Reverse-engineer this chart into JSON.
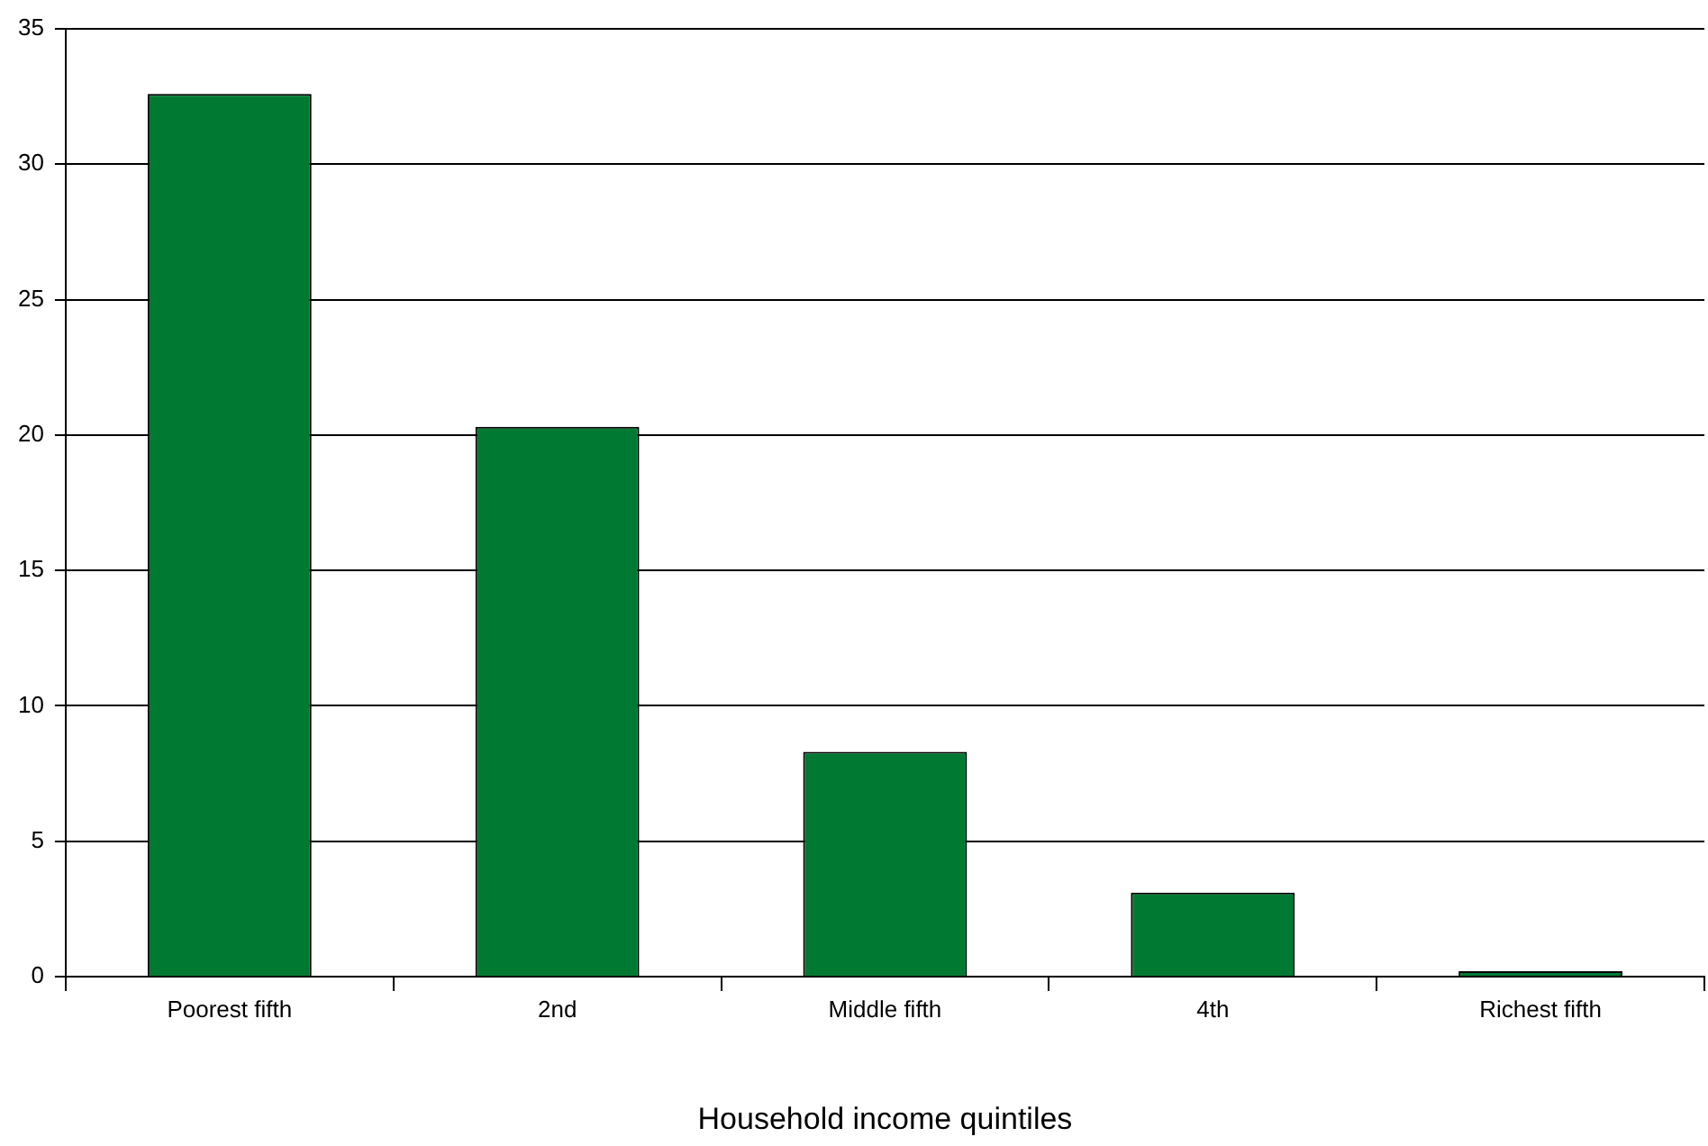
{
  "chart_data": {
    "type": "bar",
    "xlabel": "Household income quintiles",
    "categories": [
      "Poorest fifth",
      "2nd",
      "Middle fifth",
      "4th",
      "Richest fifth"
    ],
    "values": [
      32.6,
      20.3,
      8.3,
      3.1,
      0.2
    ],
    "color": "#007a33",
    "ylim": [
      0,
      35
    ],
    "yticks": [
      0,
      5,
      10,
      15,
      20,
      25,
      30,
      35
    ],
    "grid": "y",
    "legend": false
  }
}
